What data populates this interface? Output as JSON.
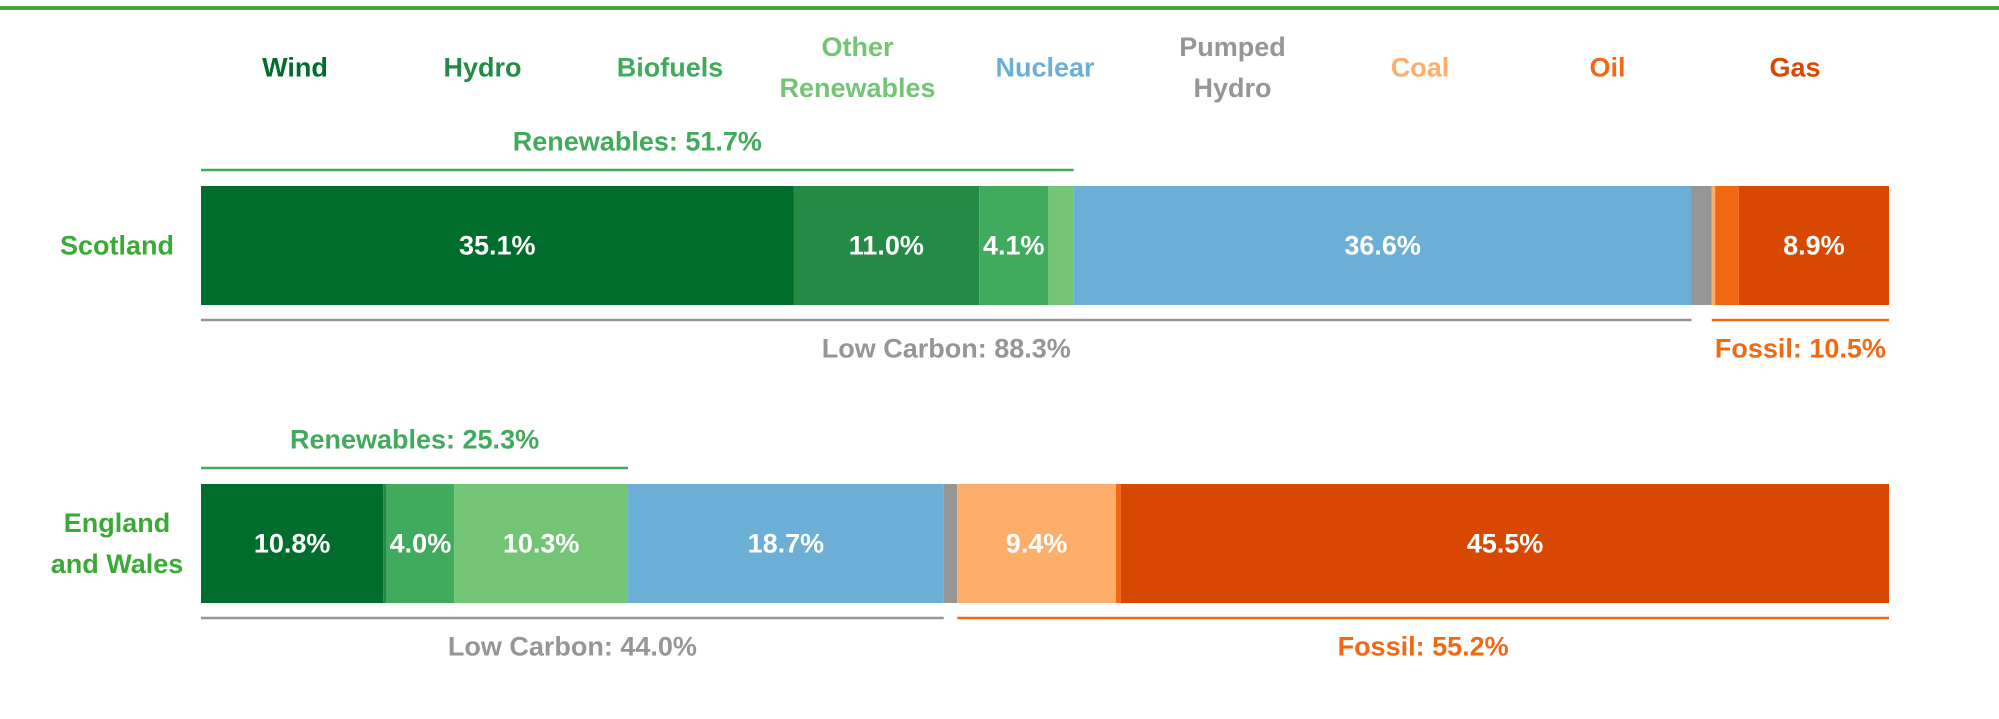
{
  "chart_data": {
    "type": "bar",
    "orientation": "horizontal",
    "stacked": true,
    "categories": [
      "Scotland",
      "England and Wales"
    ],
    "xlim": [
      0,
      100
    ],
    "series": [
      {
        "name": "Wind",
        "color": "#006d2c",
        "values": [
          35.1,
          10.8
        ],
        "value_labels": [
          "35.1%",
          "10.8%"
        ]
      },
      {
        "name": "Hydro",
        "color": "#238b45",
        "values": [
          11.0,
          0.2
        ],
        "value_labels": [
          "11.0%",
          null
        ]
      },
      {
        "name": "Biofuels",
        "color": "#41ab5d",
        "values": [
          4.1,
          4.0
        ],
        "value_labels": [
          "4.1%",
          "4.0%"
        ]
      },
      {
        "name": "Other Renewables",
        "color": "#74c476",
        "values": [
          1.5,
          10.3
        ],
        "value_labels": [
          null,
          "10.3%"
        ]
      },
      {
        "name": "Nuclear",
        "color": "#6baed6",
        "values": [
          36.6,
          18.7
        ],
        "value_labels": [
          "36.6%",
          "18.7%"
        ]
      },
      {
        "name": "Pumped Hydro",
        "color": "#969696",
        "values": [
          1.2,
          0.8
        ],
        "value_labels": [
          null,
          null
        ]
      },
      {
        "name": "Coal",
        "color": "#fdae6b",
        "values": [
          0.2,
          9.4
        ],
        "value_labels": [
          null,
          "9.4%"
        ]
      },
      {
        "name": "Oil",
        "color": "#f16913",
        "values": [
          1.4,
          0.3
        ],
        "value_labels": [
          null,
          null
        ]
      },
      {
        "name": "Gas",
        "color": "#d94801",
        "values": [
          8.9,
          45.5
        ],
        "value_labels": [
          "8.9%",
          "45.5%"
        ]
      }
    ],
    "annotations": [
      {
        "text": "Renewables: 51.7%",
        "category": 0,
        "series": [
          0,
          3
        ],
        "position": "above",
        "color": "#41ab5d"
      },
      {
        "text": "Low Carbon: 88.3%",
        "category": 0,
        "series": [
          0,
          4
        ],
        "position": "below",
        "color": "#969696"
      },
      {
        "text": "Fossil: 10.5%",
        "category": 0,
        "series": [
          6,
          8
        ],
        "position": "below",
        "color": "#f16913"
      },
      {
        "text": "Renewables: 25.3%",
        "category": 1,
        "series": [
          0,
          3
        ],
        "position": "above",
        "color": "#41ab5d"
      },
      {
        "text": "Low Carbon: 44.0%",
        "category": 1,
        "series": [
          0,
          4
        ],
        "position": "below",
        "color": "#969696"
      },
      {
        "text": "Fossil: 55.2%",
        "category": 1,
        "series": [
          6,
          8
        ],
        "position": "below",
        "color": "#f16913"
      }
    ],
    "category_label_color": "#3aaa35",
    "legend": "top"
  }
}
